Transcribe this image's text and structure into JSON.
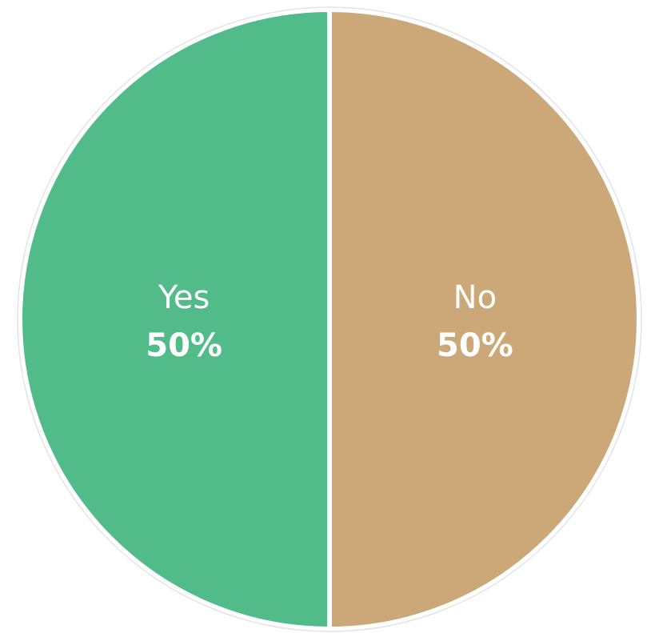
{
  "chart_data": {
    "type": "pie",
    "slices": [
      {
        "label": "Yes",
        "value": 50,
        "display": "50%",
        "color": "#52BB8A"
      },
      {
        "label": "No",
        "value": 50,
        "display": "50%",
        "color": "#CCA778"
      }
    ],
    "title": "",
    "legend": "none",
    "start_angle": "top",
    "direction": "counter-clockwise"
  }
}
